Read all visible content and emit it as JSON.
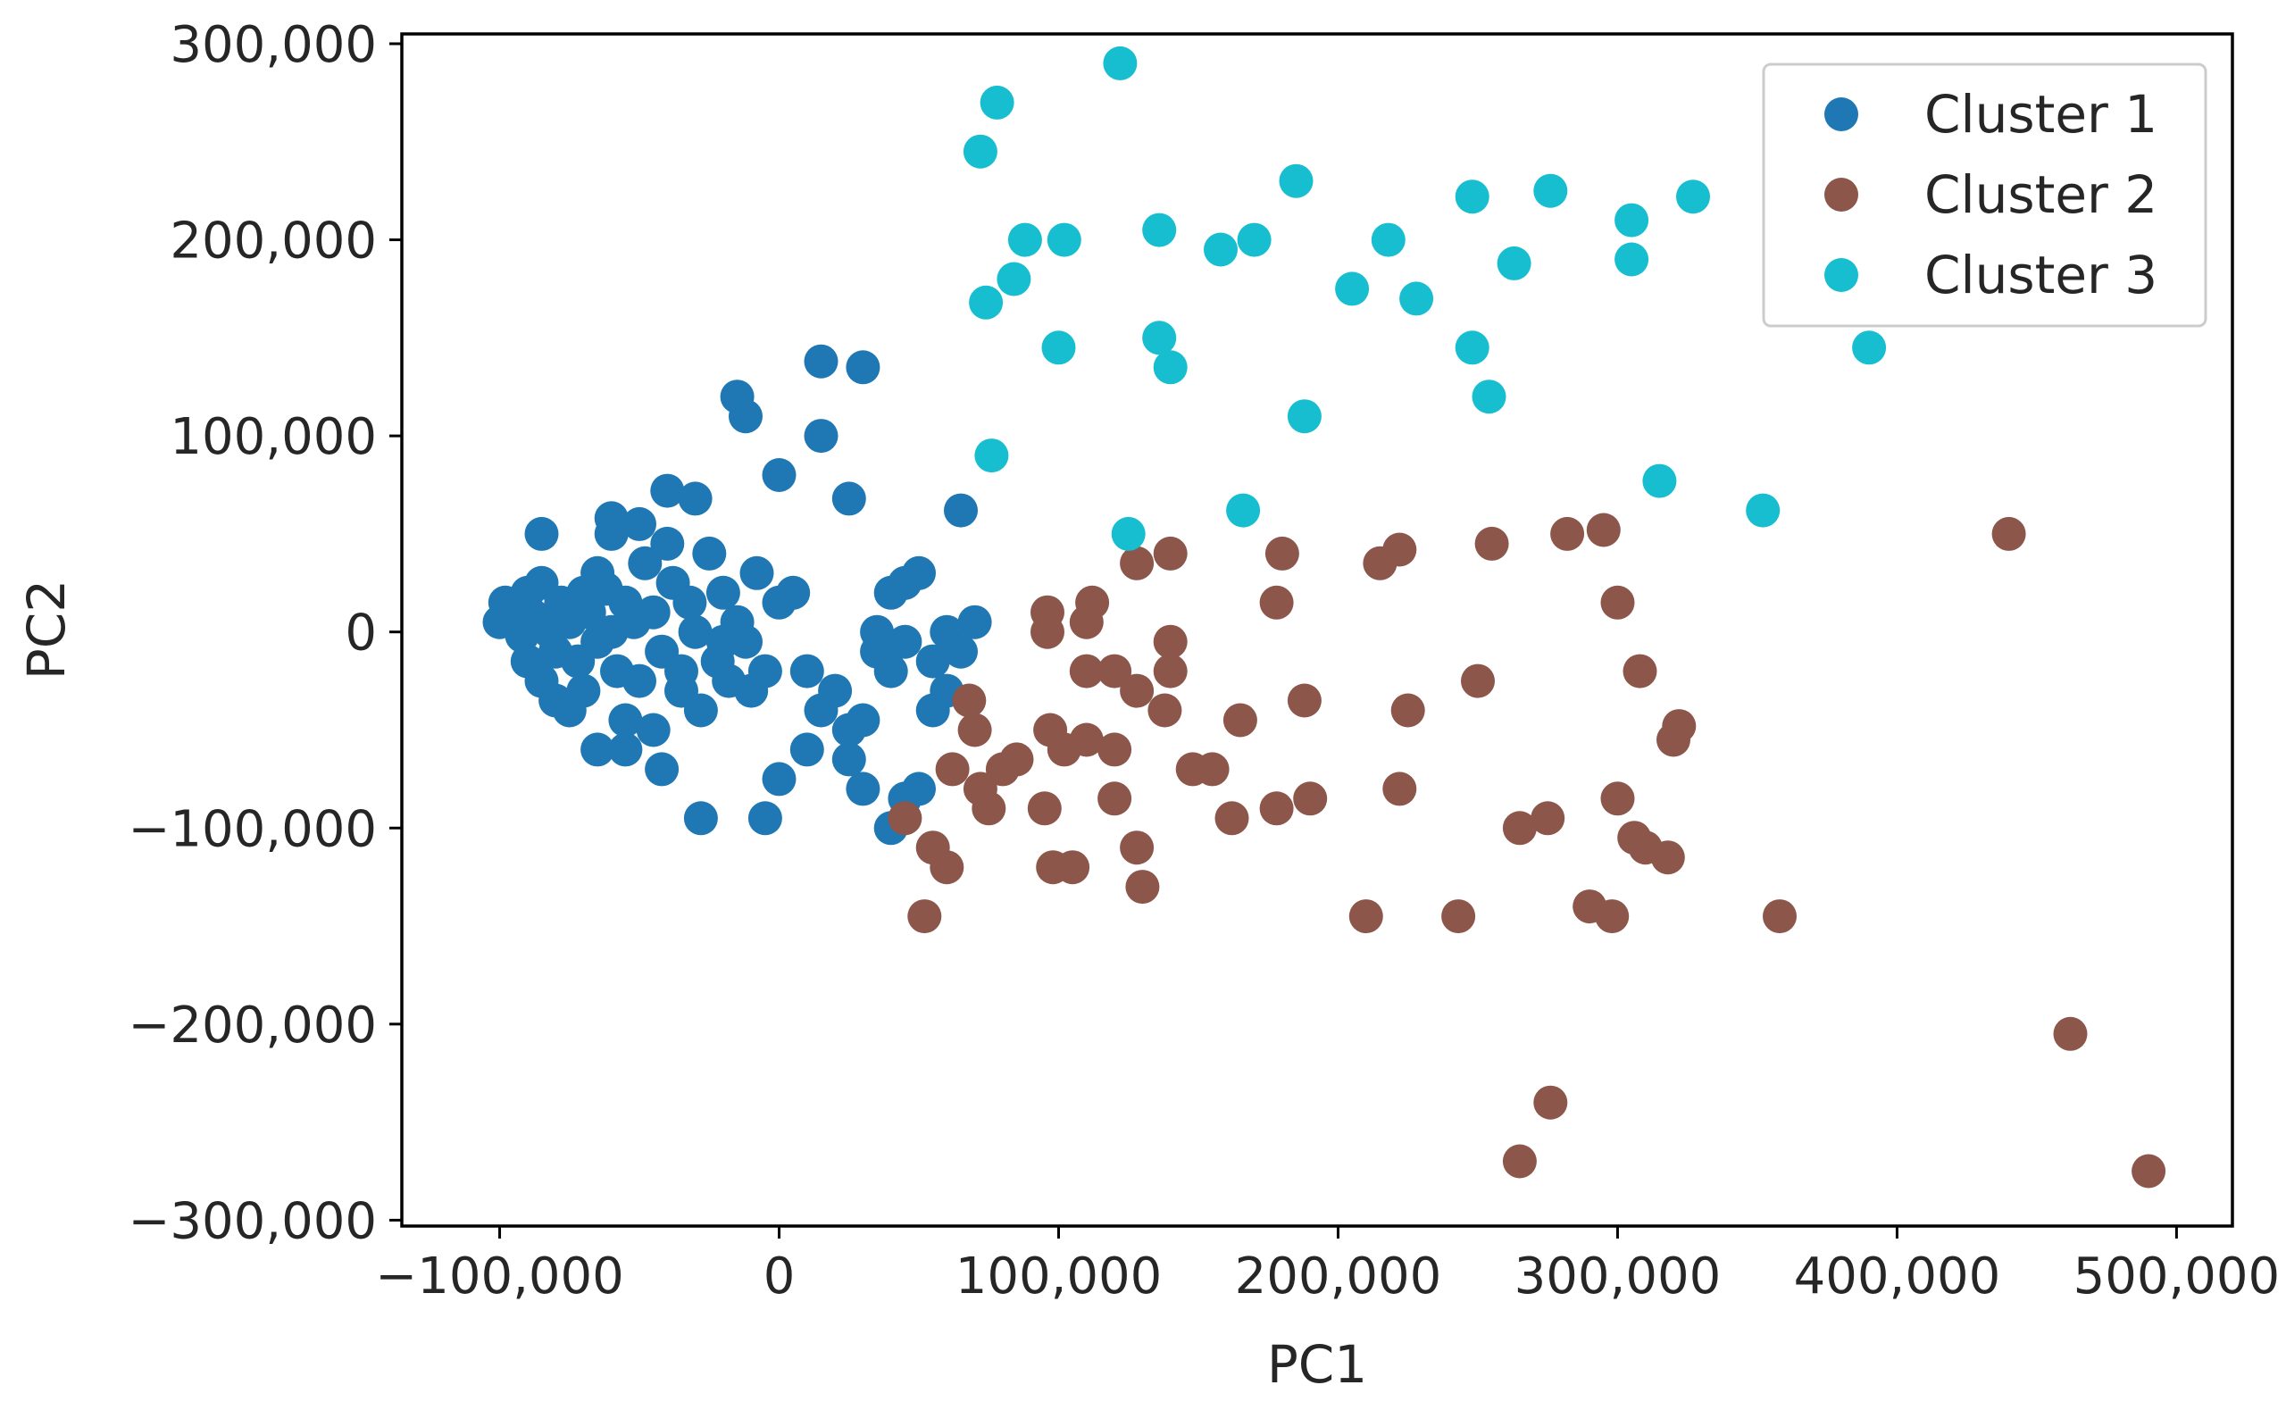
{
  "chart_data": {
    "type": "scatter",
    "title": "",
    "xlabel": "PC1",
    "ylabel": "PC2",
    "xlim": [
      -135000,
      520000
    ],
    "ylim": [
      -303000,
      305000
    ],
    "xticks": [
      -100000,
      0,
      100000,
      200000,
      300000,
      400000,
      500000
    ],
    "xtick_labels": [
      "−100,000",
      "0",
      "100,000",
      "200,000",
      "300,000",
      "400,000",
      "500,000"
    ],
    "yticks": [
      -300000,
      -200000,
      -100000,
      0,
      100000,
      200000,
      300000
    ],
    "ytick_labels": [
      "−300,000",
      "−200,000",
      "−100,000",
      "0",
      "100,000",
      "200,000",
      "300,000"
    ],
    "grid": false,
    "legend_position": "top-right",
    "series": [
      {
        "name": "Cluster 1",
        "color": "#1f77b4",
        "points": [
          [
            -100000,
            5000
          ],
          [
            -95000,
            10000
          ],
          [
            -92000,
            -2000
          ],
          [
            -98000,
            15000
          ],
          [
            -90000,
            20000
          ],
          [
            -88000,
            8000
          ],
          [
            -85000,
            25000
          ],
          [
            -82000,
            0
          ],
          [
            -80000,
            -10000
          ],
          [
            -78000,
            15000
          ],
          [
            -75000,
            5000
          ],
          [
            -72000,
            -15000
          ],
          [
            -70000,
            20000
          ],
          [
            -68000,
            10000
          ],
          [
            -65000,
            -5000
          ],
          [
            -62000,
            22000
          ],
          [
            -60000,
            0
          ],
          [
            -58000,
            -20000
          ],
          [
            -55000,
            15000
          ],
          [
            -52000,
            5000
          ],
          [
            -50000,
            -25000
          ],
          [
            -48000,
            35000
          ],
          [
            -45000,
            10000
          ],
          [
            -42000,
            -10000
          ],
          [
            -40000,
            45000
          ],
          [
            -38000,
            25000
          ],
          [
            -35000,
            -30000
          ],
          [
            -32000,
            15000
          ],
          [
            -30000,
            0
          ],
          [
            -28000,
            -40000
          ],
          [
            -25000,
            40000
          ],
          [
            -22000,
            -15000
          ],
          [
            -20000,
            20000
          ],
          [
            -18000,
            -25000
          ],
          [
            -15000,
            5000
          ],
          [
            -12000,
            -5000
          ],
          [
            -10000,
            -30000
          ],
          [
            -8000,
            30000
          ],
          [
            -5000,
            -20000
          ],
          [
            0,
            15000
          ],
          [
            -90000,
            -15000
          ],
          [
            -85000,
            -25000
          ],
          [
            -80000,
            -35000
          ],
          [
            -75000,
            -40000
          ],
          [
            -70000,
            -30000
          ],
          [
            -65000,
            30000
          ],
          [
            -60000,
            50000
          ],
          [
            -55000,
            -45000
          ],
          [
            -50000,
            55000
          ],
          [
            -45000,
            -50000
          ],
          [
            -85000,
            50000
          ],
          [
            -60000,
            58000
          ],
          [
            -40000,
            72000
          ],
          [
            -30000,
            68000
          ],
          [
            -15000,
            120000
          ],
          [
            -12000,
            110000
          ],
          [
            15000,
            138000
          ],
          [
            30000,
            135000
          ],
          [
            15000,
            100000
          ],
          [
            0,
            80000
          ],
          [
            25000,
            68000
          ],
          [
            65000,
            62000
          ],
          [
            -65000,
            -60000
          ],
          [
            -55000,
            -60000
          ],
          [
            -42000,
            -70000
          ],
          [
            -28000,
            -95000
          ],
          [
            -5000,
            -95000
          ],
          [
            0,
            -75000
          ],
          [
            10000,
            -60000
          ],
          [
            25000,
            -65000
          ],
          [
            30000,
            -80000
          ],
          [
            40000,
            -100000
          ],
          [
            45000,
            -85000
          ],
          [
            50000,
            -80000
          ],
          [
            10000,
            -20000
          ],
          [
            15000,
            -40000
          ],
          [
            20000,
            -30000
          ],
          [
            25000,
            -50000
          ],
          [
            30000,
            -45000
          ],
          [
            35000,
            0
          ],
          [
            40000,
            20000
          ],
          [
            45000,
            25000
          ],
          [
            50000,
            30000
          ],
          [
            35000,
            -10000
          ],
          [
            40000,
            -20000
          ],
          [
            45000,
            -5000
          ],
          [
            55000,
            -40000
          ],
          [
            60000,
            -30000
          ],
          [
            55000,
            -15000
          ],
          [
            60000,
            0
          ],
          [
            65000,
            -10000
          ],
          [
            70000,
            5000
          ],
          [
            5000,
            20000
          ],
          [
            -35000,
            -20000
          ],
          [
            -20000,
            -5000
          ]
        ]
      },
      {
        "name": "Cluster 2",
        "color": "#8c564b",
        "points": [
          [
            96000,
            10000
          ],
          [
            96000,
            0
          ],
          [
            112000,
            15000
          ],
          [
            110000,
            5000
          ],
          [
            128000,
            35000
          ],
          [
            140000,
            40000
          ],
          [
            140000,
            -5000
          ],
          [
            140000,
            -20000
          ],
          [
            120000,
            -20000
          ],
          [
            110000,
            -20000
          ],
          [
            68000,
            -35000
          ],
          [
            70000,
            -50000
          ],
          [
            62000,
            -70000
          ],
          [
            72000,
            -80000
          ],
          [
            75000,
            -90000
          ],
          [
            80000,
            -70000
          ],
          [
            85000,
            -65000
          ],
          [
            95000,
            -90000
          ],
          [
            97000,
            -50000
          ],
          [
            102000,
            -60000
          ],
          [
            110000,
            -55000
          ],
          [
            120000,
            -60000
          ],
          [
            120000,
            -85000
          ],
          [
            128000,
            -110000
          ],
          [
            130000,
            -130000
          ],
          [
            98000,
            -120000
          ],
          [
            105000,
            -120000
          ],
          [
            45000,
            -95000
          ],
          [
            55000,
            -110000
          ],
          [
            60000,
            -120000
          ],
          [
            52000,
            -145000
          ],
          [
            138000,
            -40000
          ],
          [
            155000,
            -70000
          ],
          [
            165000,
            -45000
          ],
          [
            162000,
            -95000
          ],
          [
            178000,
            15000
          ],
          [
            180000,
            40000
          ],
          [
            178000,
            -90000
          ],
          [
            188000,
            -35000
          ],
          [
            190000,
            -85000
          ],
          [
            215000,
            35000
          ],
          [
            222000,
            42000
          ],
          [
            225000,
            -40000
          ],
          [
            222000,
            -80000
          ],
          [
            210000,
            -145000
          ],
          [
            243000,
            -145000
          ],
          [
            250000,
            -25000
          ],
          [
            255000,
            45000
          ],
          [
            265000,
            -100000
          ],
          [
            275000,
            -95000
          ],
          [
            282000,
            50000
          ],
          [
            295000,
            52000
          ],
          [
            300000,
            15000
          ],
          [
            300000,
            -85000
          ],
          [
            308000,
            -20000
          ],
          [
            306000,
            -105000
          ],
          [
            310000,
            -110000
          ],
          [
            318000,
            -115000
          ],
          [
            320000,
            -55000
          ],
          [
            322000,
            -48000
          ],
          [
            290000,
            -140000
          ],
          [
            298000,
            -145000
          ],
          [
            358000,
            -145000
          ],
          [
            440000,
            50000
          ],
          [
            462000,
            -205000
          ],
          [
            490000,
            -275000
          ],
          [
            276000,
            -240000
          ],
          [
            265000,
            -270000
          ],
          [
            128000,
            -30000
          ],
          [
            148000,
            -70000
          ]
        ]
      },
      {
        "name": "Cluster 3",
        "color": "#17becf",
        "points": [
          [
            122000,
            290000
          ],
          [
            78000,
            270000
          ],
          [
            72000,
            245000
          ],
          [
            88000,
            200000
          ],
          [
            102000,
            200000
          ],
          [
            74000,
            168000
          ],
          [
            84000,
            180000
          ],
          [
            100000,
            145000
          ],
          [
            136000,
            205000
          ],
          [
            136000,
            150000
          ],
          [
            140000,
            135000
          ],
          [
            158000,
            195000
          ],
          [
            170000,
            200000
          ],
          [
            185000,
            230000
          ],
          [
            205000,
            175000
          ],
          [
            218000,
            200000
          ],
          [
            228000,
            170000
          ],
          [
            248000,
            222000
          ],
          [
            248000,
            145000
          ],
          [
            254000,
            120000
          ],
          [
            263000,
            188000
          ],
          [
            276000,
            225000
          ],
          [
            305000,
            210000
          ],
          [
            305000,
            190000
          ],
          [
            327000,
            222000
          ],
          [
            390000,
            145000
          ],
          [
            76000,
            90000
          ],
          [
            188000,
            110000
          ],
          [
            166000,
            62000
          ],
          [
            125000,
            50000
          ],
          [
            315000,
            77000
          ],
          [
            352000,
            62000
          ]
        ]
      }
    ]
  }
}
